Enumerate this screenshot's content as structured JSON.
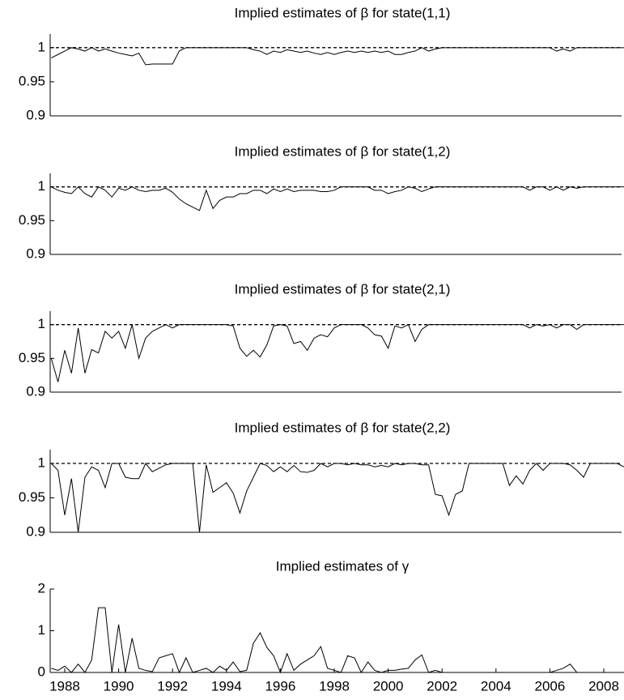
{
  "chart_data": [
    {
      "type": "line",
      "title": "Implied estimates of β for state(1,1)",
      "x": [
        1987.5,
        1987.75,
        1988,
        1988.25,
        1988.5,
        1988.75,
        1989,
        1989.25,
        1989.5,
        1989.75,
        1990,
        1990.25,
        1990.5,
        1990.75,
        1991,
        1991.25,
        1991.5,
        1991.75,
        1992,
        1992.25,
        1992.5,
        1992.75,
        1993,
        1993.25,
        1993.5,
        1993.75,
        1994,
        1994.25,
        1994.5,
        1994.75,
        1995,
        1995.25,
        1995.5,
        1995.75,
        1996,
        1996.25,
        1996.5,
        1996.75,
        1997,
        1997.25,
        1997.5,
        1997.75,
        1998,
        1998.25,
        1998.5,
        1998.75,
        1999,
        1999.25,
        1999.5,
        1999.75,
        2000,
        2000.25,
        2000.5,
        2000.75,
        2001,
        2001.25,
        2001.5,
        2001.75,
        2002,
        2002.25,
        2002.5,
        2002.75,
        2003,
        2003.25,
        2003.5,
        2003.75,
        2004,
        2004.25,
        2004.5,
        2004.75,
        2005,
        2005.25,
        2005.5,
        2005.75,
        2006,
        2006.25,
        2006.5,
        2006.75,
        2007,
        2007.25,
        2007.5,
        2007.75,
        2008,
        2008.25,
        2008.5,
        2008.75
      ],
      "series": [
        {
          "color": "#000000",
          "values": [
            0.985,
            0.99,
            0.995,
            1,
            0.998,
            0.995,
            1,
            0.995,
            0.998,
            0.995,
            0.992,
            0.99,
            0.988,
            0.992,
            0.975,
            0.976,
            0.976,
            0.976,
            0.976,
            0.995,
            1,
            1,
            1,
            1,
            1,
            1,
            1,
            1,
            1,
            1,
            0.997,
            0.995,
            0.99,
            0.995,
            0.993,
            0.997,
            0.995,
            0.993,
            0.995,
            0.992,
            0.99,
            0.993,
            0.99,
            0.993,
            0.995,
            0.993,
            0.995,
            0.993,
            0.995,
            0.993,
            0.995,
            0.99,
            0.99,
            0.993,
            0.995,
            1,
            0.995,
            0.998,
            1,
            1,
            1,
            1,
            1,
            1,
            1,
            1,
            1,
            1,
            1,
            1,
            1,
            1,
            1,
            1,
            1,
            0.995,
            0.998,
            0.995,
            1,
            1,
            1,
            1,
            1,
            1,
            1,
            1
          ]
        }
      ],
      "reference_line": 1,
      "xlim": [
        1987.46,
        2008.66
      ],
      "ylim": [
        0.9,
        1.02
      ],
      "yticks": [
        0.9,
        0.95,
        1
      ]
    },
    {
      "type": "line",
      "title": "Implied estimates of β for state(1,2)",
      "x": [
        1987.5,
        1987.75,
        1988,
        1988.25,
        1988.5,
        1988.75,
        1989,
        1989.25,
        1989.5,
        1989.75,
        1990,
        1990.25,
        1990.5,
        1990.75,
        1991,
        1991.25,
        1991.5,
        1991.75,
        1992,
        1992.25,
        1992.5,
        1992.75,
        1993,
        1993.25,
        1993.5,
        1993.75,
        1994,
        1994.25,
        1994.5,
        1994.75,
        1995,
        1995.25,
        1995.5,
        1995.75,
        1996,
        1996.25,
        1996.5,
        1996.75,
        1997,
        1997.25,
        1997.5,
        1997.75,
        1998,
        1998.25,
        1998.5,
        1998.75,
        1999,
        1999.25,
        1999.5,
        1999.75,
        2000,
        2000.25,
        2000.5,
        2000.75,
        2001,
        2001.25,
        2001.5,
        2001.75,
        2002,
        2002.25,
        2002.5,
        2002.75,
        2003,
        2003.25,
        2003.5,
        2003.75,
        2004,
        2004.25,
        2004.5,
        2004.75,
        2005,
        2005.25,
        2005.5,
        2005.75,
        2006,
        2006.25,
        2006.5,
        2006.75,
        2007,
        2007.25,
        2007.5,
        2007.75,
        2008,
        2008.25,
        2008.5,
        2008.75
      ],
      "series": [
        {
          "color": "#000000",
          "values": [
            1,
            0.995,
            0.992,
            0.99,
            1,
            0.99,
            0.985,
            1,
            0.995,
            0.985,
            0.998,
            0.995,
            1,
            0.995,
            0.993,
            0.995,
            0.995,
            0.998,
            0.992,
            0.982,
            0.975,
            0.97,
            0.965,
            0.995,
            0.968,
            0.98,
            0.985,
            0.985,
            0.99,
            0.99,
            0.995,
            0.995,
            0.99,
            0.997,
            0.993,
            0.997,
            0.993,
            0.995,
            0.995,
            0.995,
            0.993,
            0.993,
            0.995,
            1,
            1,
            1,
            1,
            1,
            0.995,
            0.995,
            0.99,
            0.993,
            0.995,
            1,
            0.998,
            0.993,
            0.997,
            1,
            1,
            1,
            1,
            1,
            1,
            1,
            1,
            1,
            1,
            1,
            1,
            1,
            1,
            0.995,
            1,
            1,
            0.995,
            1,
            0.995,
            1,
            0.998,
            1,
            1,
            1,
            1,
            1,
            1,
            1
          ]
        }
      ],
      "reference_line": 1,
      "xlim": [
        1987.46,
        2008.66
      ],
      "ylim": [
        0.9,
        1.02
      ],
      "yticks": [
        0.9,
        0.95,
        1
      ]
    },
    {
      "type": "line",
      "title": "Implied estimates of β for state(2,1)",
      "x": [
        1987.5,
        1987.75,
        1988,
        1988.25,
        1988.5,
        1988.75,
        1989,
        1989.25,
        1989.5,
        1989.75,
        1990,
        1990.25,
        1990.5,
        1990.75,
        1991,
        1991.25,
        1991.5,
        1991.75,
        1992,
        1992.25,
        1992.5,
        1992.75,
        1993,
        1993.25,
        1993.5,
        1993.75,
        1994,
        1994.25,
        1994.5,
        1994.75,
        1995,
        1995.25,
        1995.5,
        1995.75,
        1996,
        1996.25,
        1996.5,
        1996.75,
        1997,
        1997.25,
        1997.5,
        1997.75,
        1998,
        1998.25,
        1998.5,
        1998.75,
        1999,
        1999.25,
        1999.5,
        1999.75,
        2000,
        2000.25,
        2000.5,
        2000.75,
        2001,
        2001.25,
        2001.5,
        2001.75,
        2002,
        2002.25,
        2002.5,
        2002.75,
        2003,
        2003.25,
        2003.5,
        2003.75,
        2004,
        2004.25,
        2004.5,
        2004.75,
        2005,
        2005.25,
        2005.5,
        2005.75,
        2006,
        2006.25,
        2006.5,
        2006.75,
        2007,
        2007.25,
        2007.5,
        2007.75,
        2008,
        2008.25,
        2008.5,
        2008.75
      ],
      "series": [
        {
          "color": "#000000",
          "values": [
            0.95,
            0.915,
            0.962,
            0.928,
            0.995,
            0.928,
            0.963,
            0.958,
            0.99,
            0.98,
            0.99,
            0.965,
            1,
            0.95,
            0.98,
            0.99,
            0.995,
            1,
            0.995,
            1,
            1,
            1,
            1,
            1,
            1,
            1,
            1,
            0.998,
            0.965,
            0.953,
            0.962,
            0.952,
            0.97,
            0.998,
            1,
            0.998,
            0.972,
            0.975,
            0.962,
            0.98,
            0.985,
            0.982,
            0.995,
            1,
            1,
            1,
            1,
            0.995,
            0.985,
            0.983,
            0.965,
            0.998,
            0.995,
            1,
            0.975,
            0.993,
            1,
            1,
            1,
            1,
            1,
            1,
            1,
            1,
            1,
            1,
            1,
            1,
            1,
            1,
            1,
            0.995,
            1,
            0.998,
            1,
            0.995,
            1,
            1,
            0.993,
            1,
            1,
            1,
            1,
            1,
            1,
            1
          ]
        }
      ],
      "reference_line": 1,
      "xlim": [
        1987.46,
        2008.66
      ],
      "ylim": [
        0.9,
        1.02
      ],
      "yticks": [
        0.9,
        0.95,
        1
      ]
    },
    {
      "type": "line",
      "title": "Implied estimates of β for state(2,2)",
      "x": [
        1987.5,
        1987.75,
        1988,
        1988.25,
        1988.5,
        1988.75,
        1989,
        1989.25,
        1989.5,
        1989.75,
        1990,
        1990.25,
        1990.5,
        1990.75,
        1991,
        1991.25,
        1991.5,
        1991.75,
        1992,
        1992.25,
        1992.5,
        1992.75,
        1993,
        1993.25,
        1993.5,
        1993.75,
        1994,
        1994.25,
        1994.5,
        1994.75,
        1995,
        1995.25,
        1995.5,
        1995.75,
        1996,
        1996.25,
        1996.5,
        1996.75,
        1997,
        1997.25,
        1997.5,
        1997.75,
        1998,
        1998.25,
        1998.5,
        1998.75,
        1999,
        1999.25,
        1999.5,
        1999.75,
        2000,
        2000.25,
        2000.5,
        2000.75,
        2001,
        2001.25,
        2001.5,
        2001.75,
        2002,
        2002.25,
        2002.5,
        2002.75,
        2003,
        2003.25,
        2003.5,
        2003.75,
        2004,
        2004.25,
        2004.5,
        2004.75,
        2005,
        2005.25,
        2005.5,
        2005.75,
        2006,
        2006.25,
        2006.5,
        2006.75,
        2007,
        2007.25,
        2007.5,
        2007.75,
        2008,
        2008.25,
        2008.5,
        2008.75
      ],
      "series": [
        {
          "color": "#000000",
          "values": [
            1,
            0.99,
            0.925,
            0.978,
            0.9,
            0.98,
            0.995,
            0.99,
            0.965,
            1,
            1,
            0.98,
            0.978,
            0.978,
            1,
            0.988,
            0.993,
            0.998,
            1,
            1,
            1,
            1,
            0.9,
            0.998,
            0.958,
            0.965,
            0.972,
            0.957,
            0.928,
            0.96,
            0.98,
            1,
            0.997,
            0.988,
            0.995,
            0.988,
            0.997,
            0.988,
            0.987,
            0.99,
            1,
            0.995,
            1,
            1,
            0.998,
            1,
            0.998,
            0.998,
            0.995,
            0.997,
            0.995,
            1,
            0.998,
            1,
            1,
            0.998,
            0.998,
            0.955,
            0.953,
            0.925,
            0.955,
            0.96,
            1,
            1,
            1,
            1,
            1,
            1,
            0.968,
            0.982,
            0.97,
            0.99,
            1,
            0.99,
            1,
            1,
            1,
            0.998,
            0.99,
            0.98,
            1,
            1,
            1,
            1,
            1,
            0.995
          ]
        }
      ],
      "reference_line": 1,
      "xlim": [
        1987.46,
        2008.66
      ],
      "ylim": [
        0.9,
        1.02
      ],
      "yticks": [
        0.9,
        0.95,
        1
      ]
    },
    {
      "type": "line",
      "title": "Implied estimates of γ",
      "x": [
        1987.5,
        1987.75,
        1988,
        1988.25,
        1988.5,
        1988.75,
        1989,
        1989.25,
        1989.5,
        1989.75,
        1990,
        1990.25,
        1990.5,
        1990.75,
        1991,
        1991.25,
        1991.5,
        1991.75,
        1992,
        1992.25,
        1992.5,
        1992.75,
        1993,
        1993.25,
        1993.5,
        1993.75,
        1994,
        1994.25,
        1994.5,
        1994.75,
        1995,
        1995.25,
        1995.5,
        1995.75,
        1996,
        1996.25,
        1996.5,
        1996.75,
        1997,
        1997.25,
        1997.5,
        1997.75,
        1998,
        1998.25,
        1998.5,
        1998.75,
        1999,
        1999.25,
        1999.5,
        1999.75,
        2000,
        2000.25,
        2000.5,
        2000.75,
        2001,
        2001.25,
        2001.5,
        2001.75,
        2002,
        2002.25,
        2002.5,
        2002.75,
        2003,
        2003.25,
        2003.5,
        2003.75,
        2004,
        2004.25,
        2004.5,
        2004.75,
        2005,
        2005.25,
        2005.5,
        2005.75,
        2006,
        2006.25,
        2006.5,
        2006.75,
        2007,
        2007.25,
        2007.5,
        2007.75,
        2008,
        2008.25,
        2008.5,
        2008.75
      ],
      "series": [
        {
          "color": "#000000",
          "values": [
            0.1,
            0.05,
            0.15,
            0,
            0.2,
            0,
            0.3,
            1.55,
            1.55,
            0,
            1.15,
            0,
            0.82,
            0.1,
            0.05,
            0.02,
            0.35,
            0.4,
            0.45,
            0,
            0.35,
            0,
            0.05,
            0.1,
            0,
            0.15,
            0.05,
            0.25,
            0.02,
            0.05,
            0.7,
            0.95,
            0.6,
            0.4,
            0,
            0.45,
            0.05,
            0.2,
            0.3,
            0.4,
            0.62,
            0.1,
            0.05,
            0,
            0.4,
            0.35,
            0,
            0.25,
            0.05,
            0,
            0.05,
            0.05,
            0.08,
            0.1,
            0.3,
            0.42,
            0,
            0.05,
            0,
            0,
            0,
            0,
            0,
            0,
            0,
            0,
            0,
            0,
            0,
            0,
            0,
            0,
            0,
            0,
            0,
            0.05,
            0.1,
            0.2,
            0,
            0,
            0,
            0,
            0,
            0,
            0,
            0
          ]
        }
      ],
      "xlim": [
        1987.46,
        2008.66
      ],
      "ylim": [
        0,
        2
      ],
      "yticks": [
        0,
        1,
        2
      ],
      "xticks": [
        1988,
        1990,
        1992,
        1994,
        1996,
        1998,
        2000,
        2002,
        2004,
        2006,
        2008
      ]
    }
  ]
}
